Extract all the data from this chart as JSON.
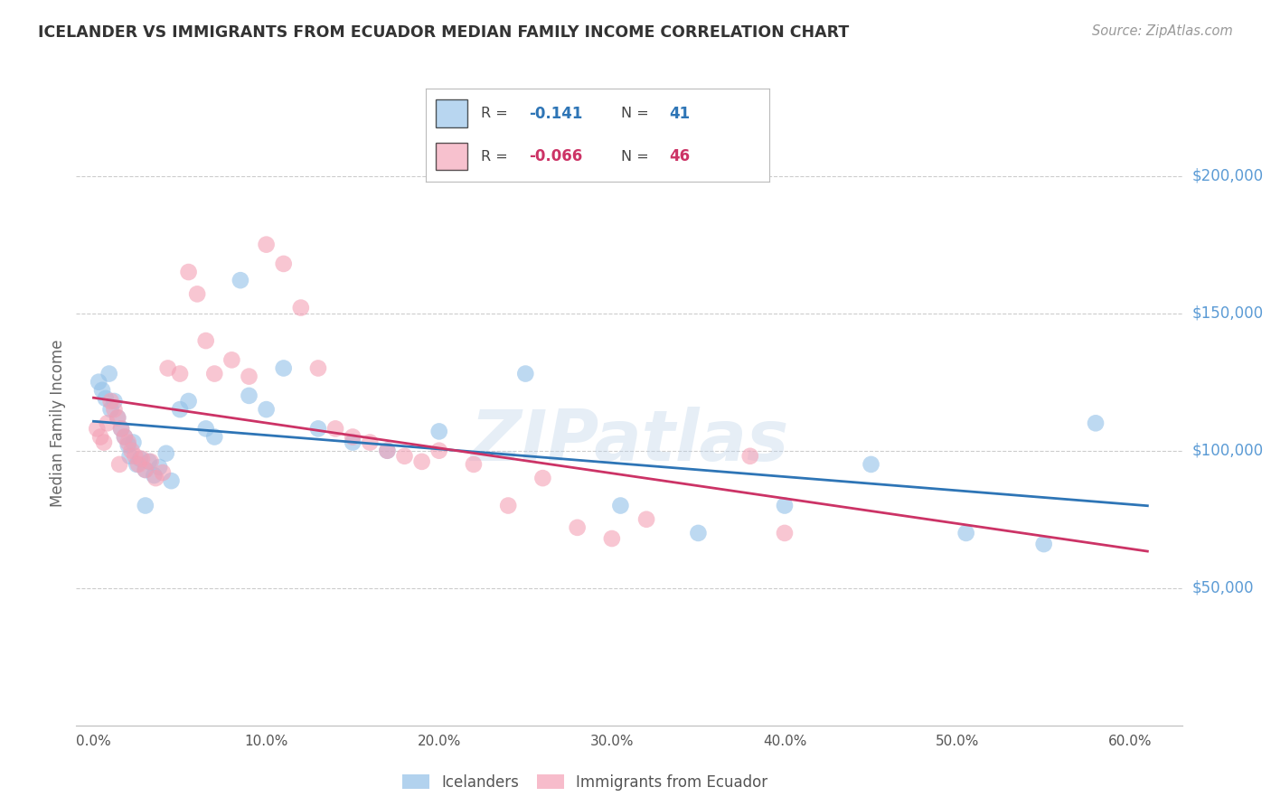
{
  "title": "ICELANDER VS IMMIGRANTS FROM ECUADOR MEDIAN FAMILY INCOME CORRELATION CHART",
  "source_text": "Source: ZipAtlas.com",
  "ylabel": "Median Family Income",
  "xlabel_ticks": [
    "0.0%",
    "10.0%",
    "20.0%",
    "30.0%",
    "40.0%",
    "50.0%",
    "60.0%"
  ],
  "xlabel_vals": [
    0.0,
    10.0,
    20.0,
    30.0,
    40.0,
    50.0,
    60.0
  ],
  "ytick_labels": [
    "$50,000",
    "$100,000",
    "$150,000",
    "$200,000"
  ],
  "ytick_vals": [
    50000,
    100000,
    150000,
    200000
  ],
  "ylim": [
    0,
    220000
  ],
  "xlim": [
    -1,
    63
  ],
  "r_blue": -0.141,
  "n_blue": 41,
  "r_pink": -0.066,
  "n_pink": 46,
  "watermark": "ZIPatlas",
  "background_color": "#ffffff",
  "grid_color": "#cccccc",
  "title_color": "#333333",
  "source_color": "#999999",
  "axis_label_color": "#666666",
  "ytick_color": "#5b9bd5",
  "blue_scatter_color": "#92c0e8",
  "pink_scatter_color": "#f4a0b5",
  "blue_line_color": "#2e75b6",
  "pink_line_color": "#cc3366",
  "blue_points": [
    [
      0.3,
      125000
    ],
    [
      0.5,
      122000
    ],
    [
      0.7,
      119000
    ],
    [
      0.9,
      128000
    ],
    [
      1.0,
      115000
    ],
    [
      1.2,
      118000
    ],
    [
      1.4,
      112000
    ],
    [
      1.6,
      108000
    ],
    [
      1.8,
      105000
    ],
    [
      2.0,
      102000
    ],
    [
      2.1,
      98000
    ],
    [
      2.3,
      103000
    ],
    [
      2.5,
      95000
    ],
    [
      2.7,
      97000
    ],
    [
      3.0,
      93000
    ],
    [
      3.2,
      96000
    ],
    [
      3.5,
      91000
    ],
    [
      3.8,
      94000
    ],
    [
      4.2,
      99000
    ],
    [
      4.5,
      89000
    ],
    [
      5.0,
      115000
    ],
    [
      5.5,
      118000
    ],
    [
      6.5,
      108000
    ],
    [
      7.0,
      105000
    ],
    [
      8.5,
      162000
    ],
    [
      9.0,
      120000
    ],
    [
      10.0,
      115000
    ],
    [
      11.0,
      130000
    ],
    [
      13.0,
      108000
    ],
    [
      15.0,
      103000
    ],
    [
      17.0,
      100000
    ],
    [
      20.0,
      107000
    ],
    [
      25.0,
      128000
    ],
    [
      30.5,
      80000
    ],
    [
      35.0,
      70000
    ],
    [
      40.0,
      80000
    ],
    [
      45.0,
      95000
    ],
    [
      50.5,
      70000
    ],
    [
      55.0,
      66000
    ],
    [
      58.0,
      110000
    ],
    [
      3.0,
      80000
    ]
  ],
  "pink_points": [
    [
      0.2,
      108000
    ],
    [
      0.4,
      105000
    ],
    [
      0.6,
      103000
    ],
    [
      0.8,
      110000
    ],
    [
      1.0,
      118000
    ],
    [
      1.2,
      115000
    ],
    [
      1.4,
      112000
    ],
    [
      1.6,
      108000
    ],
    [
      1.8,
      105000
    ],
    [
      2.0,
      103000
    ],
    [
      2.2,
      100000
    ],
    [
      2.4,
      98000
    ],
    [
      2.6,
      95000
    ],
    [
      2.8,
      97000
    ],
    [
      3.0,
      93000
    ],
    [
      3.3,
      96000
    ],
    [
      3.6,
      90000
    ],
    [
      4.0,
      92000
    ],
    [
      4.3,
      130000
    ],
    [
      5.0,
      128000
    ],
    [
      5.5,
      165000
    ],
    [
      6.0,
      157000
    ],
    [
      6.5,
      140000
    ],
    [
      7.0,
      128000
    ],
    [
      8.0,
      133000
    ],
    [
      9.0,
      127000
    ],
    [
      10.0,
      175000
    ],
    [
      11.0,
      168000
    ],
    [
      12.0,
      152000
    ],
    [
      13.0,
      130000
    ],
    [
      14.0,
      108000
    ],
    [
      15.0,
      105000
    ],
    [
      16.0,
      103000
    ],
    [
      17.0,
      100000
    ],
    [
      18.0,
      98000
    ],
    [
      19.0,
      96000
    ],
    [
      20.0,
      100000
    ],
    [
      22.0,
      95000
    ],
    [
      24.0,
      80000
    ],
    [
      26.0,
      90000
    ],
    [
      28.0,
      72000
    ],
    [
      30.0,
      68000
    ],
    [
      32.0,
      75000
    ],
    [
      38.0,
      98000
    ],
    [
      40.0,
      70000
    ],
    [
      1.5,
      95000
    ]
  ]
}
